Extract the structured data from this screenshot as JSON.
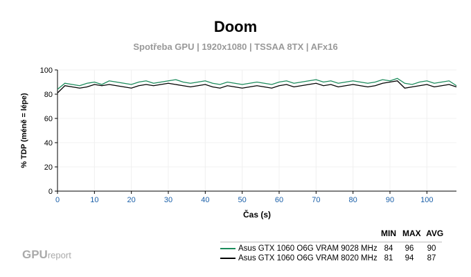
{
  "chart_data": {
    "type": "line",
    "title": "Doom",
    "subtitle": "Spotřeba GPU | 1920x1080 | TSSAA 8TX | AFx16",
    "xlabel": "Čas (s)",
    "ylabel": "% TDP (méně = lépe)",
    "xlim": [
      0,
      108
    ],
    "ylim": [
      0,
      100
    ],
    "xticks": [
      0,
      10,
      20,
      30,
      40,
      50,
      60,
      70,
      80,
      90,
      100
    ],
    "yticks": [
      0,
      20,
      40,
      60,
      80,
      100
    ],
    "grid": true,
    "x": [
      0,
      2,
      4,
      6,
      8,
      10,
      12,
      14,
      16,
      18,
      20,
      22,
      24,
      26,
      28,
      30,
      32,
      34,
      36,
      38,
      40,
      42,
      44,
      46,
      48,
      50,
      52,
      54,
      56,
      58,
      60,
      62,
      64,
      66,
      68,
      70,
      72,
      74,
      76,
      78,
      80,
      82,
      84,
      86,
      88,
      90,
      92,
      94,
      96,
      98,
      100,
      102,
      104,
      106,
      108
    ],
    "series": [
      {
        "name": "Asus GTX 1060 O6G VRAM 9028 MHz",
        "color": "#1a8a5a",
        "min": 84,
        "max": 96,
        "avg": 90,
        "values": [
          84,
          89,
          88,
          87,
          89,
          90,
          88,
          91,
          90,
          89,
          88,
          90,
          91,
          89,
          90,
          91,
          92,
          90,
          89,
          90,
          91,
          89,
          88,
          90,
          89,
          88,
          89,
          90,
          89,
          88,
          90,
          91,
          89,
          90,
          91,
          92,
          90,
          91,
          89,
          90,
          91,
          90,
          89,
          90,
          92,
          91,
          93,
          89,
          88,
          90,
          91,
          89,
          90,
          91,
          87
        ]
      },
      {
        "name": "Asus GTX 1060 O6G VRAM 8020 MHz",
        "color": "#000000",
        "min": 81,
        "max": 94,
        "avg": 87,
        "values": [
          81,
          87,
          86,
          85,
          86,
          88,
          87,
          88,
          87,
          86,
          85,
          87,
          88,
          87,
          88,
          89,
          88,
          87,
          86,
          87,
          88,
          86,
          85,
          87,
          86,
          85,
          86,
          87,
          86,
          85,
          87,
          88,
          86,
          87,
          88,
          89,
          87,
          88,
          86,
          87,
          88,
          87,
          86,
          87,
          89,
          90,
          91,
          85,
          86,
          87,
          88,
          86,
          87,
          88,
          86
        ]
      }
    ],
    "legend_headers": [
      "MIN",
      "MAX",
      "AVG"
    ]
  },
  "branding": {
    "logo_main": "GPU",
    "logo_sub": "report"
  }
}
